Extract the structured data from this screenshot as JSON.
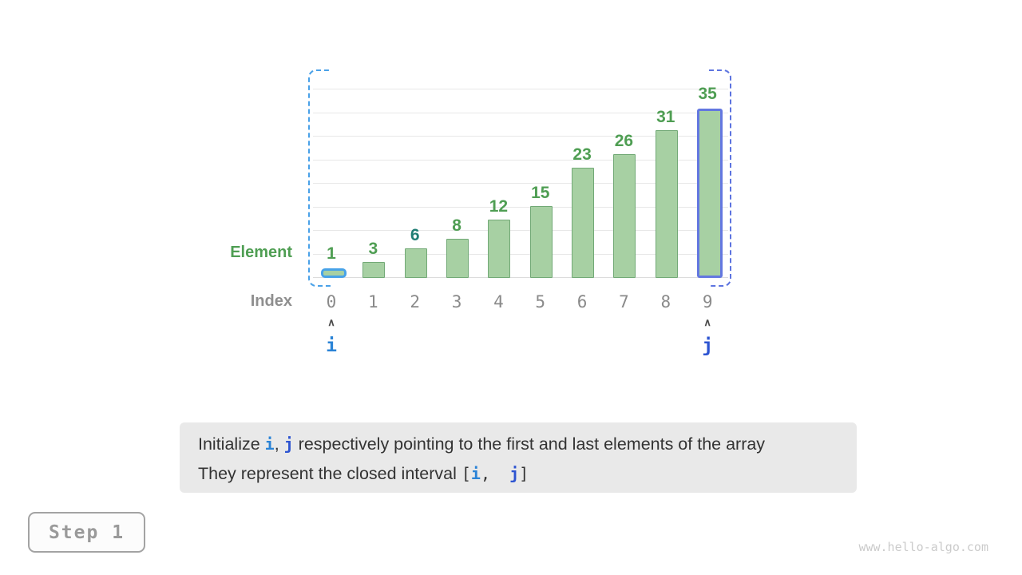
{
  "chart_data": {
    "type": "bar",
    "categories": [
      "0",
      "1",
      "2",
      "3",
      "4",
      "5",
      "6",
      "7",
      "8",
      "9"
    ],
    "values": [
      1,
      3,
      6,
      8,
      12,
      15,
      23,
      26,
      31,
      35
    ],
    "title": "",
    "xlabel": "Index",
    "ylabel": "Element",
    "ylim": [
      0,
      40
    ],
    "grid_step": 5,
    "grid": "horizontal",
    "legend": "none",
    "target_value": 6,
    "pointers": {
      "i": 0,
      "j": 9
    },
    "interval_brackets": {
      "left_index": 0,
      "right_index": 9
    }
  },
  "labels": {
    "element": "Element",
    "index": "Index",
    "i": "i",
    "j": "j",
    "caret": "∧"
  },
  "caption": {
    "line1": [
      {
        "t": "Initialize ",
        "c": "text"
      },
      {
        "t": "i",
        "c": "code-i"
      },
      {
        "t": ", ",
        "c": "text"
      },
      {
        "t": "j",
        "c": "code-j"
      },
      {
        "t": " respectively pointing to the first and last elements of the array",
        "c": "text"
      }
    ],
    "line2": [
      {
        "t": "They represent the closed interval ",
        "c": "text"
      },
      {
        "t": "[",
        "c": "code-plain"
      },
      {
        "t": "i",
        "c": "code-i"
      },
      {
        "t": ",  ",
        "c": "code-plain"
      },
      {
        "t": "j",
        "c": "code-j"
      },
      {
        "t": "]",
        "c": "code-plain"
      }
    ]
  },
  "step_badge": {
    "label": "Step 1"
  },
  "watermark": "www.hello-algo.com",
  "colors": {
    "bar_fill": "#a7d0a3",
    "bar_border": "#72a976",
    "value_text": "#4f9e53",
    "target_text": "#1f7d74",
    "pointer_i_blue": "#2a83d6",
    "pointer_j_blue": "#2d54d1",
    "highlight_i_border": "#47a2e8",
    "highlight_j_border": "#6377e0",
    "bracket_left_dash": "#4aa1e8",
    "bracket_right_dash": "#5d74e0",
    "caption_bg": "#e9e9e9",
    "gray_text": "#8a8a8a"
  }
}
